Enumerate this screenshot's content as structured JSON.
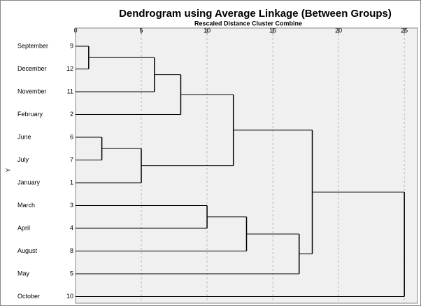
{
  "chart_data": {
    "type": "dendrogram",
    "title": "Dendrogram using Average Linkage (Between Groups)",
    "subtitle": "Rescaled Distance Cluster Combine",
    "y_label": "Y",
    "xlim": [
      0,
      26
    ],
    "xticks": [
      0,
      5,
      10,
      15,
      20,
      25
    ],
    "grid": true,
    "tree": {
      "distance": 25,
      "children": [
        {
          "distance": 18,
          "children": [
            {
              "distance": 12,
              "children": [
                {
                  "distance": 8,
                  "children": [
                    {
                      "distance": 6,
                      "children": [
                        {
                          "distance": 1,
                          "children": [
                            {
                              "label": "September",
                              "case": 9
                            },
                            {
                              "label": "December",
                              "case": 12
                            }
                          ]
                        },
                        {
                          "label": "November",
                          "case": 11
                        }
                      ]
                    },
                    {
                      "label": "February",
                      "case": 2
                    }
                  ]
                },
                {
                  "distance": 5,
                  "children": [
                    {
                      "distance": 2,
                      "children": [
                        {
                          "label": "June",
                          "case": 6
                        },
                        {
                          "label": "July",
                          "case": 7
                        }
                      ]
                    },
                    {
                      "label": "January",
                      "case": 1
                    }
                  ]
                }
              ]
            },
            {
              "distance": 17,
              "children": [
                {
                  "distance": 13,
                  "children": [
                    {
                      "distance": 10,
                      "children": [
                        {
                          "label": "March",
                          "case": 3
                        },
                        {
                          "label": "April",
                          "case": 4
                        }
                      ]
                    },
                    {
                      "label": "August",
                      "case": 8
                    }
                  ]
                },
                {
                  "label": "May",
                  "case": 5
                }
              ]
            }
          ]
        },
        {
          "label": "October",
          "case": 10
        }
      ]
    }
  }
}
